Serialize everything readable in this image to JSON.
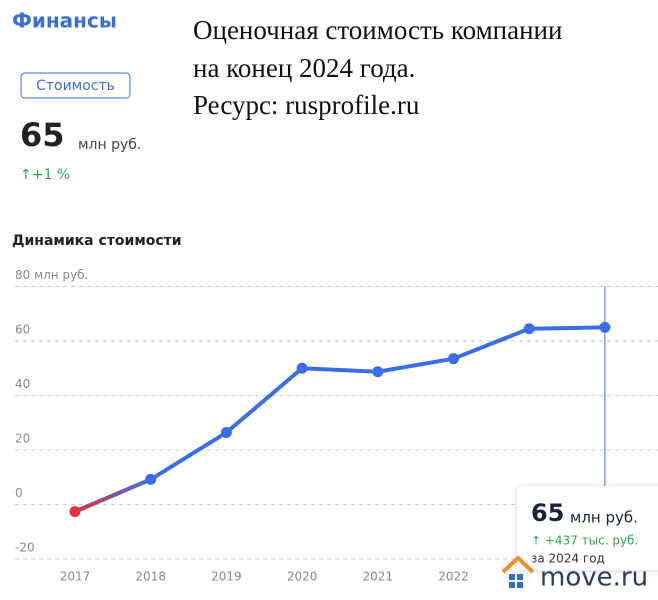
{
  "header": {
    "title": "Финансы",
    "tab": "Стоимость",
    "value": "65",
    "unit": "млн руб.",
    "change": "↑+1 %"
  },
  "caption": [
    "Оценочная стоимость компании",
    "на конец 2024 года.",
    "Ресурс: rusprofile.ru"
  ],
  "tooltip": {
    "value": "65",
    "unit": "млн руб.",
    "change": "↑ +437 тыс. руб.",
    "period": "за 2024 год"
  },
  "logo": "move.ru",
  "chart_data": {
    "type": "line",
    "title": "Динамика стоимости",
    "categories": [
      "2017",
      "2018",
      "2019",
      "2020",
      "2021",
      "2022",
      null,
      null
    ],
    "values": [
      -2.6,
      9.2,
      26.4,
      50,
      48.7,
      53.5,
      64.5,
      65
    ],
    "color": "#3a6ee8",
    "first_point_color": "#e0323c",
    "ylim": [
      -20,
      82
    ],
    "yticks": [
      -20,
      0,
      20,
      40,
      60,
      {
        "value": 80,
        "label": "80 млн руб."
      }
    ],
    "grid": true
  }
}
